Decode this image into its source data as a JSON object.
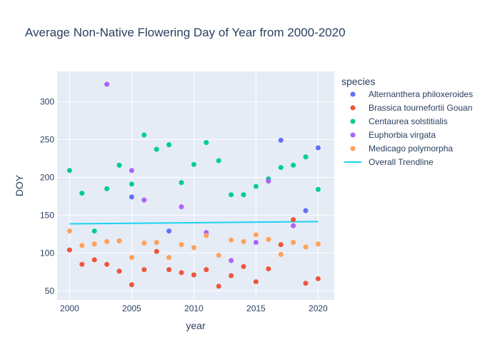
{
  "chart_data": {
    "type": "scatter",
    "title": "Average Non-Native Flowering Day of Year from 2000-2020",
    "xlabel": "year",
    "ylabel": "DOY",
    "xlim": [
      1999,
      2021.3
    ],
    "ylim": [
      38,
      340
    ],
    "x_ticks": [
      2000,
      2005,
      2010,
      2015,
      2020
    ],
    "y_ticks": [
      50,
      100,
      150,
      200,
      250,
      300
    ],
    "grid": true,
    "plot_background": "#e5ecf6",
    "legend": {
      "title": "species",
      "placement": "right"
    },
    "series": [
      {
        "name": "Alternanthera philoxeroides",
        "color": "#636efa",
        "points": [
          [
            2005,
            174
          ],
          [
            2008,
            129
          ],
          [
            2017,
            249
          ],
          [
            2019,
            156
          ],
          [
            2020,
            239
          ]
        ]
      },
      {
        "name": "Brassica tournefortii Gouan",
        "color": "#ef553b",
        "points": [
          [
            2000,
            104
          ],
          [
            2001,
            85
          ],
          [
            2002,
            91
          ],
          [
            2003,
            85
          ],
          [
            2004,
            76
          ],
          [
            2005,
            58
          ],
          [
            2006,
            78
          ],
          [
            2007,
            102
          ],
          [
            2008,
            78
          ],
          [
            2009,
            74
          ],
          [
            2010,
            71
          ],
          [
            2011,
            78
          ],
          [
            2012,
            56
          ],
          [
            2013,
            70
          ],
          [
            2014,
            82
          ],
          [
            2015,
            62
          ],
          [
            2016,
            79
          ],
          [
            2017,
            111
          ],
          [
            2018,
            144
          ],
          [
            2019,
            60
          ],
          [
            2020,
            66
          ]
        ]
      },
      {
        "name": "Centaurea solstitialis",
        "color": "#00cc96",
        "points": [
          [
            2000,
            209
          ],
          [
            2001,
            179
          ],
          [
            2002,
            129
          ],
          [
            2003,
            185
          ],
          [
            2004,
            216
          ],
          [
            2005,
            191
          ],
          [
            2006,
            256
          ],
          [
            2007,
            237
          ],
          [
            2008,
            243
          ],
          [
            2009,
            193
          ],
          [
            2010,
            217
          ],
          [
            2011,
            246
          ],
          [
            2012,
            222
          ],
          [
            2013,
            177
          ],
          [
            2014,
            177
          ],
          [
            2015,
            188
          ],
          [
            2016,
            198
          ],
          [
            2017,
            213
          ],
          [
            2018,
            216
          ],
          [
            2019,
            227
          ],
          [
            2020,
            184
          ]
        ]
      },
      {
        "name": "Euphorbia virgata",
        "color": "#ab63fa",
        "points": [
          [
            2003,
            323
          ],
          [
            2004,
            116
          ],
          [
            2005,
            209
          ],
          [
            2006,
            170
          ],
          [
            2009,
            161
          ],
          [
            2011,
            127
          ],
          [
            2013,
            90
          ],
          [
            2015,
            114
          ],
          [
            2016,
            195
          ],
          [
            2018,
            136
          ]
        ]
      },
      {
        "name": "Medicago polymorpha",
        "color": "#ffa15a",
        "points": [
          [
            2000,
            129
          ],
          [
            2001,
            110
          ],
          [
            2002,
            112
          ],
          [
            2003,
            115
          ],
          [
            2004,
            116
          ],
          [
            2005,
            94
          ],
          [
            2006,
            113
          ],
          [
            2007,
            114
          ],
          [
            2008,
            94
          ],
          [
            2009,
            111
          ],
          [
            2010,
            107
          ],
          [
            2011,
            123
          ],
          [
            2012,
            97
          ],
          [
            2013,
            117
          ],
          [
            2014,
            115
          ],
          [
            2015,
            124
          ],
          [
            2016,
            118
          ],
          [
            2017,
            98
          ],
          [
            2018,
            114
          ],
          [
            2019,
            108
          ],
          [
            2020,
            112
          ]
        ]
      }
    ],
    "trendline": {
      "name": "Overall Trendline",
      "color": "#19d3f3",
      "points": [
        [
          2000,
          138.5
        ],
        [
          2020,
          141.5
        ]
      ]
    }
  }
}
